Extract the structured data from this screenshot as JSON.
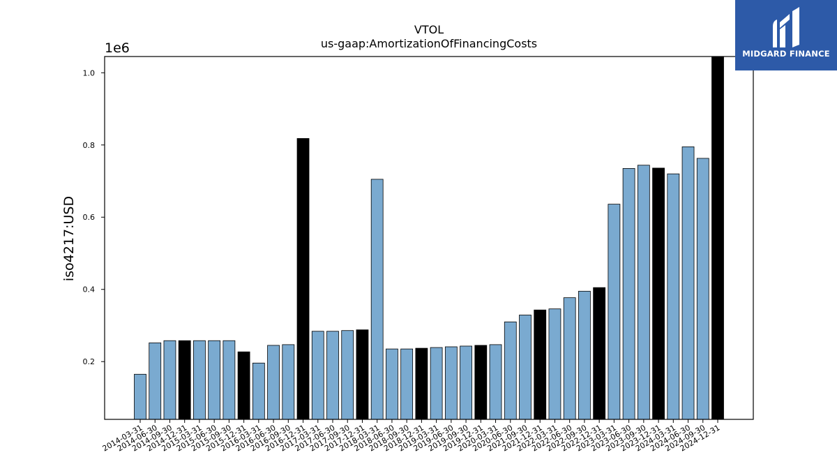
{
  "chart_data": {
    "type": "bar",
    "title": "VTOL",
    "subtitle": "us-gaap:AmortizationOfFinancingCosts",
    "ylabel": "iso4217:USD",
    "xlabel": "",
    "offset_label": "1e6",
    "ylim": [
      0.04,
      1.045
    ],
    "yticks": [
      0.2,
      0.4,
      0.6,
      0.8,
      1.0
    ],
    "ytick_labels": [
      "0.2",
      "0.4",
      "0.6",
      "0.8",
      "1.0"
    ],
    "grid": false,
    "colors": {
      "quarter": "#7aaad0",
      "year_end": "#000000",
      "edge": "#000000"
    },
    "categories": [
      "2014-03-31",
      "2014-06-30",
      "2014-09-30",
      "2014-12-31",
      "2015-03-31",
      "2015-06-30",
      "2015-09-30",
      "2015-12-31",
      "2016-03-31",
      "2016-06-30",
      "2016-09-30",
      "2016-12-31",
      "2017-03-31",
      "2017-06-30",
      "2017-09-30",
      "2017-12-31",
      "2018-03-31",
      "2018-06-30",
      "2018-09-30",
      "2018-12-31",
      "2019-03-31",
      "2019-06-30",
      "2019-09-30",
      "2019-12-31",
      "2020-03-31",
      "2020-06-30",
      "2021-09-30",
      "2021-12-31",
      "2022-03-31",
      "2022-06-30",
      "2022-09-30",
      "2022-12-31",
      "2023-03-31",
      "2023-06-30",
      "2023-09-30",
      "2023-12-31",
      "2024-03-31",
      "2024-06-30",
      "2024-09-30",
      "2024-12-31"
    ],
    "values": [
      0.165,
      0.252,
      0.258,
      0.258,
      0.258,
      0.258,
      0.258,
      0.227,
      0.196,
      0.245,
      0.247,
      0.818,
      0.284,
      0.284,
      0.286,
      0.288,
      0.705,
      0.235,
      0.235,
      0.237,
      0.239,
      0.241,
      0.243,
      0.245,
      0.247,
      0.31,
      0.329,
      0.343,
      0.346,
      0.377,
      0.395,
      0.405,
      0.636,
      0.735,
      0.744,
      0.736,
      0.72,
      0.795,
      0.763,
      1.045
    ],
    "year_end": [
      false,
      false,
      false,
      true,
      false,
      false,
      false,
      true,
      false,
      false,
      false,
      true,
      false,
      false,
      false,
      true,
      false,
      false,
      false,
      true,
      false,
      false,
      false,
      true,
      false,
      false,
      false,
      true,
      false,
      false,
      false,
      true,
      false,
      false,
      false,
      true,
      false,
      false,
      false,
      true
    ]
  },
  "logo": {
    "text": "MIDGARD FINANCE",
    "background": "#2d5aa8"
  }
}
